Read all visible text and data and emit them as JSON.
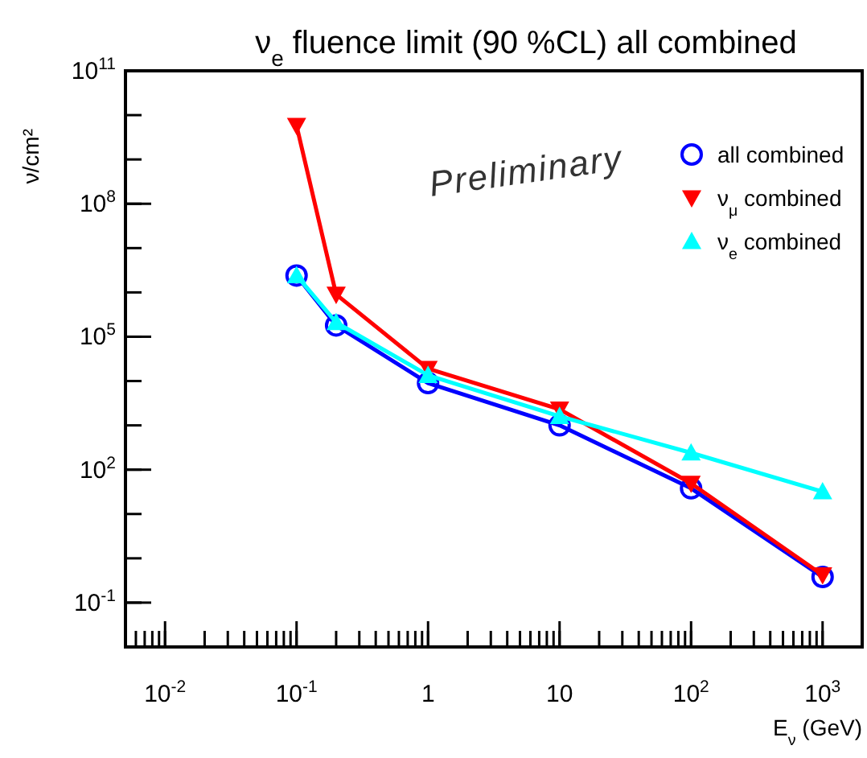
{
  "chart_data": {
    "type": "line",
    "title": "ν$_{e}$ fluence limit (90 %CL) all combined",
    "xlabel": "E$_{ν}$ (GeV)",
    "ylabel": "ν/cm²",
    "log": "xy",
    "grid": false,
    "legend": "top right",
    "xlim": [
      0.005,
      2000
    ],
    "ylim": [
      0.01,
      100000000000.0
    ],
    "xticks": [
      {
        "value": 0.01,
        "label": "10$^{-2}$"
      },
      {
        "value": 0.1,
        "label": "10$^{-1}$"
      },
      1,
      10,
      {
        "value": 100,
        "label": "10$^{2}$"
      },
      {
        "value": 1000,
        "label": "10$^{3}$"
      }
    ],
    "yticks": [
      {
        "value": 0.1,
        "label": "10$^{-1}$"
      },
      {
        "value": 100,
        "label": "10$^{2}$"
      },
      {
        "value": 100000,
        "label": "10$^{5}$"
      },
      {
        "value": 100000000,
        "label": "10$^{8}$"
      },
      {
        "value": 100000000000,
        "label": "10$^{11}$"
      }
    ],
    "x": [
      0.1,
      0.2,
      1,
      10,
      100,
      1000
    ],
    "annotations": [
      "Preliminary"
    ],
    "series": [
      {
        "name": "all combined",
        "color": "#0000ff",
        "marker": "circle",
        "values": [
          2400000,
          180000,
          9000,
          1000,
          38,
          0.38
        ]
      },
      {
        "name": "ν$_{μ}$ combined",
        "color": "#ff0000",
        "marker": "triangle-down",
        "values": [
          5800000000,
          900000,
          19000,
          2300,
          49,
          0.42
        ]
      },
      {
        "name": "ν$_{e}$ combined",
        "color": "#00ffff",
        "marker": "triangle",
        "values": [
          2400000,
          210000,
          13500,
          1600,
          240,
          32
        ]
      }
    ]
  }
}
